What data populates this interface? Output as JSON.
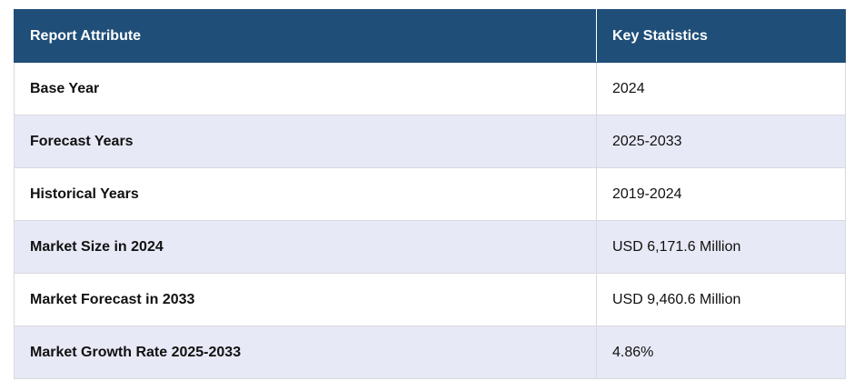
{
  "table": {
    "header": [
      "Report Attribute",
      "Key Statistics"
    ],
    "rows": [
      [
        "Base Year",
        "2024"
      ],
      [
        "Forecast Years",
        "2025-2033"
      ],
      [
        "Historical Years",
        "2019-2024"
      ],
      [
        "Market Size in 2024",
        "USD 6,171.6 Million"
      ],
      [
        "Market Forecast in 2033",
        "USD 9,460.6 Million"
      ],
      [
        "Market Growth Rate 2025-2033",
        "4.86%"
      ]
    ]
  }
}
